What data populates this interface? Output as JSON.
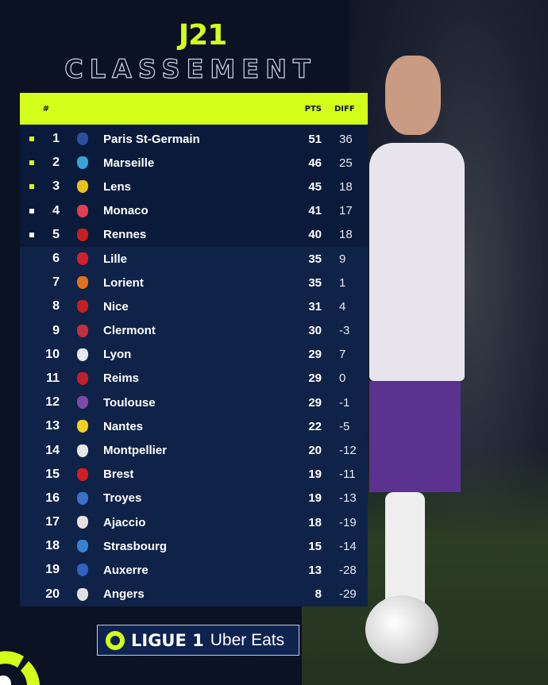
{
  "header": {
    "round": "J21",
    "title": "CLASSEMENT"
  },
  "colors": {
    "accent": "#d4ff1a",
    "qualify_top": "#d4ff1a",
    "qualify_europe": "#ffffff",
    "background": "#0a1224"
  },
  "table": {
    "columns": {
      "position": "#",
      "points": "PTS",
      "diff": "DIFF"
    },
    "rows": [
      {
        "pos": "1",
        "team": "Paris St-Germain",
        "pts": "51",
        "diff": "36",
        "marker": "lime",
        "crest": "#2a4fa0"
      },
      {
        "pos": "2",
        "team": "Marseille",
        "pts": "46",
        "diff": "25",
        "marker": "lime",
        "crest": "#3aa0d8"
      },
      {
        "pos": "3",
        "team": "Lens",
        "pts": "45",
        "diff": "18",
        "marker": "lime",
        "crest": "#e8c020"
      },
      {
        "pos": "4",
        "team": "Monaco",
        "pts": "41",
        "diff": "17",
        "marker": "white",
        "crest": "#e04050"
      },
      {
        "pos": "5",
        "team": "Rennes",
        "pts": "40",
        "diff": "18",
        "marker": "white",
        "crest": "#c82020"
      },
      {
        "pos": "6",
        "team": "Lille",
        "pts": "35",
        "diff": "9",
        "crest": "#d02030"
      },
      {
        "pos": "7",
        "team": "Lorient",
        "pts": "35",
        "diff": "1",
        "crest": "#e07020"
      },
      {
        "pos": "8",
        "team": "Nice",
        "pts": "31",
        "diff": "4",
        "crest": "#c02020"
      },
      {
        "pos": "9",
        "team": "Clermont",
        "pts": "30",
        "diff": "-3",
        "crest": "#c03040"
      },
      {
        "pos": "10",
        "team": "Lyon",
        "pts": "29",
        "diff": "7",
        "crest": "#e8e8f0"
      },
      {
        "pos": "11",
        "team": "Reims",
        "pts": "29",
        "diff": "0",
        "crest": "#c02030"
      },
      {
        "pos": "12",
        "team": "Toulouse",
        "pts": "29",
        "diff": "-1",
        "crest": "#7a4aa8"
      },
      {
        "pos": "13",
        "team": "Nantes",
        "pts": "22",
        "diff": "-5",
        "crest": "#f0d020"
      },
      {
        "pos": "14",
        "team": "Montpellier",
        "pts": "20",
        "diff": "-12",
        "crest": "#e8e8e8"
      },
      {
        "pos": "15",
        "team": "Brest",
        "pts": "19",
        "diff": "-11",
        "crest": "#d02020"
      },
      {
        "pos": "16",
        "team": "Troyes",
        "pts": "19",
        "diff": "-13",
        "crest": "#3a70c8"
      },
      {
        "pos": "17",
        "team": "Ajaccio",
        "pts": "18",
        "diff": "-19",
        "crest": "#e8e0e0"
      },
      {
        "pos": "18",
        "team": "Strasbourg",
        "pts": "15",
        "diff": "-14",
        "crest": "#3a80d0"
      },
      {
        "pos": "19",
        "team": "Auxerre",
        "pts": "13",
        "diff": "-28",
        "crest": "#3060c0"
      },
      {
        "pos": "20",
        "team": "Angers",
        "pts": "8",
        "diff": "-29",
        "crest": "#e0e0e0"
      }
    ]
  },
  "footer": {
    "league": "LIGUE 1",
    "sponsor": "Uber Eats"
  }
}
